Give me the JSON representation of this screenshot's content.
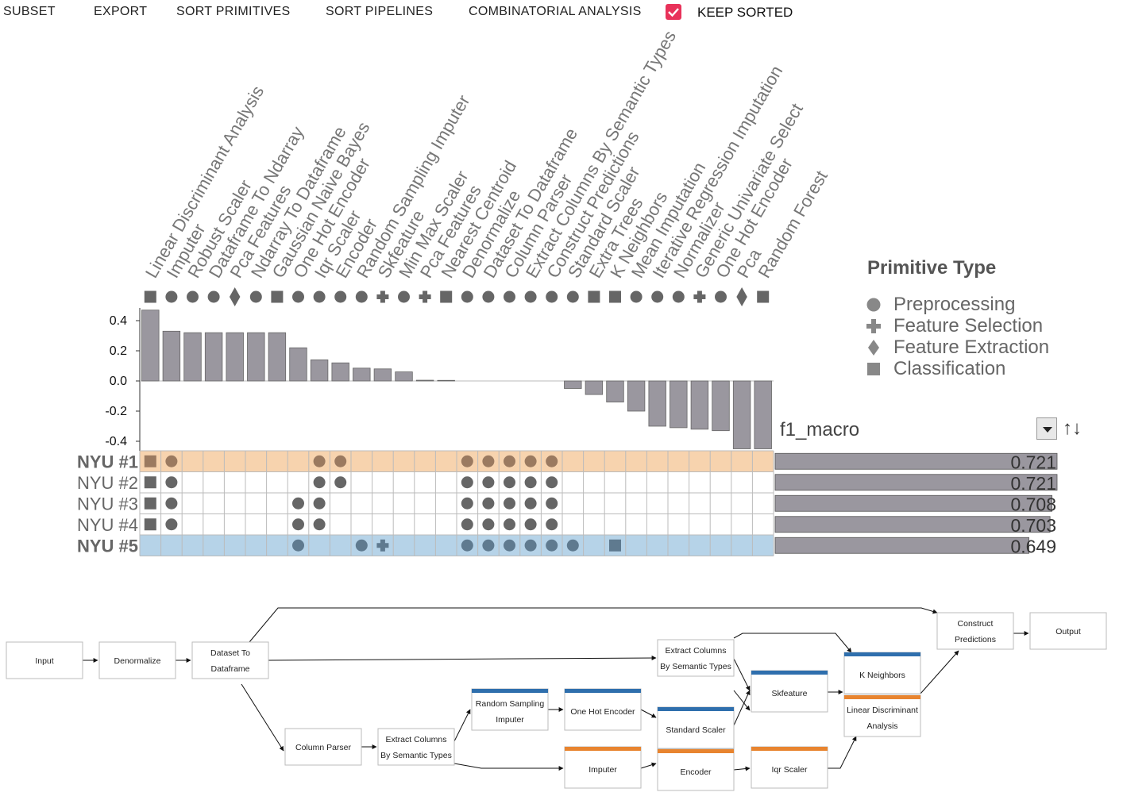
{
  "menu": {
    "subset": "SUBSET",
    "export": "EXPORT",
    "sort_primitives": "SORT PRIMITIVES",
    "sort_pipelines": "SORT PIPELINES",
    "combinatorial": "COMBINATORIAL ANALYSIS",
    "keep_sorted": "KEEP SORTED",
    "keep_sorted_checked": true,
    "accent": "#e8325a"
  },
  "legend": {
    "title": "Primitive Type",
    "items": [
      {
        "type": "preprocessing",
        "label": "Preprocessing",
        "icon": "circle-icon"
      },
      {
        "type": "feature_selection",
        "label": "Feature Selection",
        "icon": "plus-icon"
      },
      {
        "type": "feature_extraction",
        "label": "Feature Extraction",
        "icon": "diamond-icon"
      },
      {
        "type": "classification",
        "label": "Classification",
        "icon": "square-icon"
      }
    ]
  },
  "metric": {
    "name": "f1_macro",
    "sort_icon": "sort-icon"
  },
  "colors": {
    "bar": "#9a979f",
    "highlight_orange": "#f7d3ae",
    "highlight_blue": "#b6d3e8",
    "dot": "#666",
    "dot_orange": "#9b7a60",
    "dot_blue": "#5f7a8f",
    "grid": "#bbb",
    "pipe_blue": "#2f6fad",
    "pipe_orange": "#e8842f"
  },
  "chart_data": {
    "type": "bar",
    "primitives": [
      {
        "name": "Linear Discriminant Analysis",
        "type": "classification",
        "importance": 0.47
      },
      {
        "name": "Imputer",
        "type": "preprocessing",
        "importance": 0.33
      },
      {
        "name": "Robust Scaler",
        "type": "preprocessing",
        "importance": 0.32
      },
      {
        "name": "Dataframe To Ndarray",
        "type": "preprocessing",
        "importance": 0.32
      },
      {
        "name": "Pca Features",
        "type": "feature_extraction",
        "importance": 0.32
      },
      {
        "name": "Ndarray To Dataframe",
        "type": "preprocessing",
        "importance": 0.32
      },
      {
        "name": "Gaussian Naive Bayes",
        "type": "classification",
        "importance": 0.32
      },
      {
        "name": "One Hot Encoder",
        "type": "preprocessing",
        "importance": 0.22
      },
      {
        "name": "Iqr Scaler",
        "type": "preprocessing",
        "importance": 0.14
      },
      {
        "name": "Encoder",
        "type": "preprocessing",
        "importance": 0.12
      },
      {
        "name": "Random Sampling Imputer",
        "type": "preprocessing",
        "importance": 0.085
      },
      {
        "name": "Skfeature",
        "type": "feature_selection",
        "importance": 0.08
      },
      {
        "name": "Min Max Scaler",
        "type": "preprocessing",
        "importance": 0.06
      },
      {
        "name": "Pca Features",
        "type": "feature_selection",
        "importance": 0.005
      },
      {
        "name": "Nearest Centroid",
        "type": "classification",
        "importance": 0.004
      },
      {
        "name": "Denormalize",
        "type": "preprocessing",
        "importance": 0.0
      },
      {
        "name": "Dataset To Dataframe",
        "type": "preprocessing",
        "importance": 0.0
      },
      {
        "name": "Column Parser",
        "type": "preprocessing",
        "importance": 0.0
      },
      {
        "name": "Extract Columns By Semantic Types",
        "type": "preprocessing",
        "importance": 0.0
      },
      {
        "name": "Construct Predictions",
        "type": "preprocessing",
        "importance": 0.0
      },
      {
        "name": "Standard Scaler",
        "type": "preprocessing",
        "importance": -0.05
      },
      {
        "name": "Extra Trees",
        "type": "classification",
        "importance": -0.09
      },
      {
        "name": "K Neighbors",
        "type": "classification",
        "importance": -0.14
      },
      {
        "name": "Mean Imputation",
        "type": "preprocessing",
        "importance": -0.2
      },
      {
        "name": "Iterative Regression Imputation",
        "type": "preprocessing",
        "importance": -0.3
      },
      {
        "name": "Normalizer",
        "type": "preprocessing",
        "importance": -0.31
      },
      {
        "name": "Generic Univariate Select",
        "type": "feature_selection",
        "importance": -0.32
      },
      {
        "name": "One Hot Encoder",
        "type": "preprocessing",
        "importance": -0.33
      },
      {
        "name": "Pca",
        "type": "feature_extraction",
        "importance": -0.45
      },
      {
        "name": "Random Forest",
        "type": "classification",
        "importance": -0.45
      }
    ],
    "ylim": [
      -0.45,
      0.5
    ],
    "yticks": [
      "0.4",
      "0.2",
      "0.0",
      "-0.2",
      "-0.4"
    ],
    "ytick_values": [
      0.4,
      0.2,
      0.0,
      -0.2,
      -0.4
    ],
    "pipelines": [
      {
        "name": "NYU #1",
        "score": 0.721,
        "score_label": "0.721",
        "highlight": "orange",
        "bold": true,
        "uses": [
          0,
          1,
          8,
          9,
          15,
          16,
          17,
          18,
          19
        ]
      },
      {
        "name": "NYU #2",
        "score": 0.721,
        "score_label": "0.721",
        "highlight": "",
        "bold": false,
        "uses": [
          0,
          1,
          8,
          9,
          15,
          16,
          17,
          18,
          19
        ]
      },
      {
        "name": "NYU #3",
        "score": 0.708,
        "score_label": "0.708",
        "highlight": "",
        "bold": false,
        "uses": [
          0,
          1,
          7,
          8,
          15,
          16,
          17,
          18,
          19
        ]
      },
      {
        "name": "NYU #4",
        "score": 0.703,
        "score_label": "0.703",
        "highlight": "",
        "bold": false,
        "uses": [
          0,
          1,
          7,
          8,
          15,
          16,
          17,
          18,
          19
        ]
      },
      {
        "name": "NYU #5",
        "score": 0.649,
        "score_label": "0.649",
        "highlight": "blue",
        "bold": true,
        "uses": [
          7,
          10,
          11,
          15,
          16,
          17,
          18,
          19,
          20,
          22
        ]
      }
    ]
  },
  "pipeline_graph": {
    "nodes": [
      {
        "id": "input",
        "lines": [
          "Input"
        ],
        "bar": ""
      },
      {
        "id": "denormalize",
        "lines": [
          "Denormalize"
        ],
        "bar": ""
      },
      {
        "id": "dataset_to_dataframe",
        "lines": [
          "Dataset To",
          "Dataframe"
        ],
        "bar": ""
      },
      {
        "id": "column_parser",
        "lines": [
          "Column Parser"
        ],
        "bar": ""
      },
      {
        "id": "extract_cols_1",
        "lines": [
          "Extract Columns",
          "By Semantic Types"
        ],
        "bar": ""
      },
      {
        "id": "extract_cols_2",
        "lines": [
          "Extract Columns",
          "By Semantic Types"
        ],
        "bar": ""
      },
      {
        "id": "random_sampling_imputer",
        "lines": [
          "Random Sampling",
          "Imputer"
        ],
        "bar": "blue"
      },
      {
        "id": "one_hot_encoder",
        "lines": [
          "One Hot Encoder"
        ],
        "bar": "blue"
      },
      {
        "id": "imputer",
        "lines": [
          "Imputer"
        ],
        "bar": "orange"
      },
      {
        "id": "standard_scaler",
        "lines": [
          "Standard Scaler"
        ],
        "bar": "blue"
      },
      {
        "id": "encoder",
        "lines": [
          "Encoder"
        ],
        "bar": "orange"
      },
      {
        "id": "skfeature",
        "lines": [
          "Skfeature"
        ],
        "bar": "blue"
      },
      {
        "id": "iqr_scaler",
        "lines": [
          "Iqr Scaler"
        ],
        "bar": "orange"
      },
      {
        "id": "k_neighbors",
        "lines": [
          "K Neighbors"
        ],
        "bar": "blue"
      },
      {
        "id": "lda",
        "lines": [
          "Linear Discriminant",
          "Analysis"
        ],
        "bar": "orange"
      },
      {
        "id": "construct_predictions",
        "lines": [
          "Construct",
          "Predictions"
        ],
        "bar": ""
      },
      {
        "id": "output",
        "lines": [
          "Output"
        ],
        "bar": ""
      }
    ]
  }
}
